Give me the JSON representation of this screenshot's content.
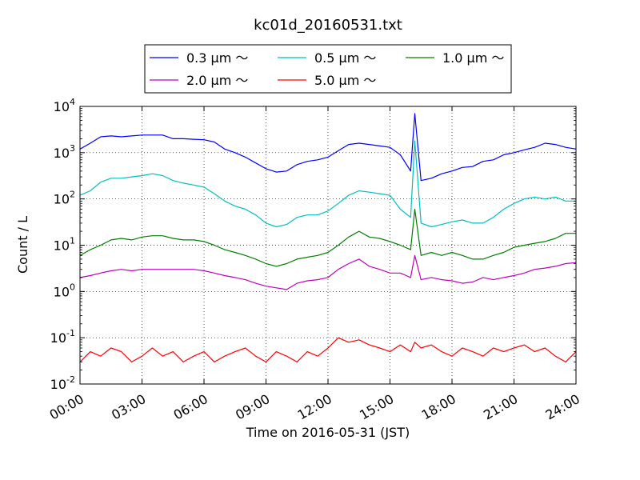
{
  "chart_data": {
    "type": "line",
    "title": "kc01d_20160531.txt",
    "xlabel": "Time on 2016-05-31 (JST)",
    "ylabel": "Count / L",
    "yscale": "log",
    "ylim": [
      0.01,
      10000
    ],
    "y_ticks": [
      {
        "base": "10",
        "exp": "-2",
        "value": 0.01
      },
      {
        "base": "10",
        "exp": "-1",
        "value": 0.1
      },
      {
        "base": "10",
        "exp": "0",
        "value": 1
      },
      {
        "base": "10",
        "exp": "1",
        "value": 10
      },
      {
        "base": "10",
        "exp": "2",
        "value": 100
      },
      {
        "base": "10",
        "exp": "3",
        "value": 1000
      },
      {
        "base": "10",
        "exp": "4",
        "value": 10000
      }
    ],
    "x_ticks": [
      {
        "label": "00:00",
        "hour": 0
      },
      {
        "label": "03:00",
        "hour": 3
      },
      {
        "label": "06:00",
        "hour": 6
      },
      {
        "label": "09:00",
        "hour": 9
      },
      {
        "label": "12:00",
        "hour": 12
      },
      {
        "label": "15:00",
        "hour": 15
      },
      {
        "label": "18:00",
        "hour": 18
      },
      {
        "label": "21:00",
        "hour": 21
      },
      {
        "label": "24:00",
        "hour": 24
      }
    ],
    "grid": true,
    "legend_position": "top-center",
    "series": [
      {
        "name": "0.3 μm ～",
        "color": "#0000ff",
        "x": [
          0,
          0.5,
          1,
          1.5,
          2,
          2.5,
          3,
          3.5,
          4,
          4.5,
          5,
          5.5,
          6,
          6.5,
          7,
          7.5,
          8,
          8.5,
          9,
          9.5,
          10,
          10.5,
          11,
          11.5,
          12,
          12.5,
          13,
          13.5,
          14,
          14.5,
          15,
          15.5,
          16,
          16.2,
          16.5,
          17,
          17.5,
          18,
          18.5,
          19,
          19.5,
          20,
          20.5,
          21,
          21.5,
          22,
          22.5,
          23,
          23.5,
          24
        ],
        "y": [
          1200,
          1600,
          2200,
          2300,
          2200,
          2300,
          2400,
          2400,
          2400,
          2000,
          2000,
          1950,
          1900,
          1700,
          1200,
          1000,
          800,
          600,
          450,
          380,
          400,
          550,
          650,
          700,
          800,
          1100,
          1500,
          1600,
          1500,
          1400,
          1300,
          900,
          400,
          7000,
          250,
          280,
          350,
          400,
          480,
          500,
          650,
          700,
          900,
          1000,
          1150,
          1300,
          1600,
          1500,
          1300,
          1200
        ]
      },
      {
        "name": "0.5 μm ～",
        "color": "#00bfbf",
        "x": [
          0,
          0.5,
          1,
          1.5,
          2,
          2.5,
          3,
          3.5,
          4,
          4.5,
          5,
          5.5,
          6,
          6.5,
          7,
          7.5,
          8,
          8.5,
          9,
          9.5,
          10,
          10.5,
          11,
          11.5,
          12,
          12.5,
          13,
          13.5,
          14,
          14.5,
          15,
          15.5,
          16,
          16.2,
          16.5,
          17,
          17.5,
          18,
          18.5,
          19,
          19.5,
          20,
          20.5,
          21,
          21.5,
          22,
          22.5,
          23,
          23.5,
          24
        ],
        "y": [
          120,
          150,
          230,
          280,
          280,
          300,
          320,
          350,
          320,
          250,
          220,
          200,
          180,
          130,
          90,
          70,
          60,
          45,
          30,
          25,
          28,
          40,
          45,
          45,
          55,
          80,
          120,
          150,
          140,
          130,
          120,
          60,
          40,
          1800,
          30,
          25,
          28,
          32,
          35,
          30,
          30,
          40,
          60,
          80,
          100,
          110,
          100,
          110,
          90,
          90
        ]
      },
      {
        "name": "1.0 μm ～",
        "color": "#008000",
        "x": [
          0,
          0.5,
          1,
          1.5,
          2,
          2.5,
          3,
          3.5,
          4,
          4.5,
          5,
          5.5,
          6,
          6.5,
          7,
          7.5,
          8,
          8.5,
          9,
          9.5,
          10,
          10.5,
          11,
          11.5,
          12,
          12.5,
          13,
          13.5,
          14,
          14.5,
          15,
          15.5,
          16,
          16.2,
          16.5,
          17,
          17.5,
          18,
          18.5,
          19,
          19.5,
          20,
          20.5,
          21,
          21.5,
          22,
          22.5,
          23,
          23.5,
          24
        ],
        "y": [
          6,
          8,
          10,
          13,
          14,
          13,
          15,
          16,
          16,
          14,
          13,
          13,
          12,
          10,
          8,
          7,
          6,
          5,
          4,
          3.5,
          4,
          5,
          5.5,
          6,
          7,
          10,
          15,
          20,
          15,
          14,
          12,
          10,
          8,
          60,
          6,
          7,
          6,
          7,
          6,
          5,
          5,
          6,
          7,
          9,
          10,
          11,
          12,
          14,
          18,
          18
        ]
      },
      {
        "name": "2.0 μm ～",
        "color": "#bf00bf",
        "x": [
          0,
          0.5,
          1,
          1.5,
          2,
          2.5,
          3,
          3.5,
          4,
          4.5,
          5,
          5.5,
          6,
          6.5,
          7,
          7.5,
          8,
          8.5,
          9,
          9.5,
          10,
          10.5,
          11,
          11.5,
          12,
          12.5,
          13,
          13.5,
          14,
          14.5,
          15,
          15.5,
          16,
          16.2,
          16.5,
          17,
          17.5,
          18,
          18.5,
          19,
          19.5,
          20,
          20.5,
          21,
          21.5,
          22,
          22.5,
          23,
          23.5,
          24
        ],
        "y": [
          2,
          2.2,
          2.5,
          2.8,
          3,
          2.8,
          3,
          3,
          3,
          3,
          3,
          3,
          2.8,
          2.5,
          2.2,
          2,
          1.8,
          1.5,
          1.3,
          1.2,
          1.1,
          1.5,
          1.7,
          1.8,
          2,
          3,
          4,
          5,
          3.5,
          3,
          2.5,
          2.5,
          2,
          6,
          1.8,
          2,
          1.8,
          1.7,
          1.5,
          1.6,
          2,
          1.8,
          2,
          2.2,
          2.5,
          3,
          3.2,
          3.5,
          4,
          4.2
        ]
      },
      {
        "name": "5.0 μm ～",
        "color": "#ff0000",
        "x": [
          0,
          0.5,
          1,
          1.5,
          2,
          2.5,
          3,
          3.5,
          4,
          4.5,
          5,
          5.5,
          6,
          6.5,
          7,
          7.5,
          8,
          8.5,
          9,
          9.5,
          10,
          10.5,
          11,
          11.5,
          12,
          12.5,
          13,
          13.5,
          14,
          14.5,
          15,
          15.5,
          16,
          16.2,
          16.5,
          17,
          17.5,
          18,
          18.5,
          19,
          19.5,
          20,
          20.5,
          21,
          21.5,
          22,
          22.5,
          23,
          23.5,
          24
        ],
        "y": [
          0.03,
          0.05,
          0.04,
          0.06,
          0.05,
          0.03,
          0.04,
          0.06,
          0.04,
          0.05,
          0.03,
          0.04,
          0.05,
          0.03,
          0.04,
          0.05,
          0.06,
          0.04,
          0.03,
          0.05,
          0.04,
          0.03,
          0.05,
          0.04,
          0.06,
          0.1,
          0.08,
          0.09,
          0.07,
          0.06,
          0.05,
          0.07,
          0.05,
          0.08,
          0.06,
          0.07,
          0.05,
          0.04,
          0.06,
          0.05,
          0.04,
          0.06,
          0.05,
          0.06,
          0.07,
          0.05,
          0.06,
          0.04,
          0.03,
          0.05
        ]
      }
    ]
  }
}
